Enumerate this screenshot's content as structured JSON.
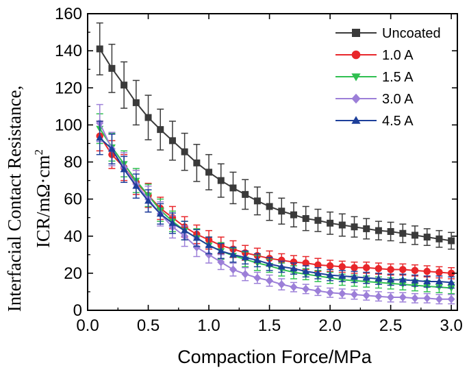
{
  "chart_data": {
    "type": "line",
    "xlabel": "Compaction Force/MPa",
    "ylabel_line1": "Interfacial Contact Resistance,",
    "ylabel_line2_text": "ICR/mΩ·cm",
    "ylabel_line2_sup": "2",
    "xlim": [
      0.0,
      3.05
    ],
    "ylim": [
      0,
      160
    ],
    "xticks": [
      "0.0",
      "0.5",
      "1.0",
      "1.5",
      "2.0",
      "2.5",
      "3.0"
    ],
    "xtick_values": [
      0.0,
      0.5,
      1.0,
      1.5,
      2.0,
      2.5,
      3.0
    ],
    "yticks": [
      "0",
      "20",
      "40",
      "60",
      "80",
      "100",
      "120",
      "140",
      "160"
    ],
    "ytick_values": [
      0,
      20,
      40,
      60,
      80,
      100,
      120,
      140,
      160
    ],
    "legend_position": "top-right",
    "x": [
      0.1,
      0.2,
      0.3,
      0.4,
      0.5,
      0.6,
      0.7,
      0.8,
      0.9,
      1.0,
      1.1,
      1.2,
      1.3,
      1.4,
      1.5,
      1.6,
      1.7,
      1.8,
      1.9,
      2.0,
      2.1,
      2.2,
      2.3,
      2.4,
      2.5,
      2.6,
      2.7,
      2.8,
      2.9,
      3.0
    ],
    "series": [
      {
        "name": "Uncoated",
        "color": "#3a3a3a",
        "marker": "square",
        "values": [
          141,
          130.5,
          121.5,
          112,
          104,
          97.5,
          91.5,
          85.5,
          79.5,
          74.5,
          70,
          66,
          62.5,
          59,
          56,
          53.5,
          51.5,
          49.5,
          48.5,
          47,
          46,
          45,
          44,
          43,
          42.5,
          41.5,
          40.5,
          39.5,
          38.5,
          37.5
        ],
        "errors": [
          14,
          13,
          12.5,
          12,
          12,
          11,
          10.5,
          10,
          10,
          9.5,
          9,
          8.5,
          8,
          7.5,
          7.5,
          7,
          6.5,
          6.5,
          6,
          6,
          6,
          5.5,
          5.5,
          5,
          5,
          5,
          5,
          4.5,
          4.5,
          4.5
        ]
      },
      {
        "name": "1.0 A",
        "color": "#e8262a",
        "marker": "circle",
        "values": [
          94,
          84,
          77,
          69,
          62,
          55,
          50,
          45,
          41,
          38,
          35,
          33,
          31,
          29.5,
          28,
          27,
          26,
          25.5,
          24.5,
          24,
          23.5,
          23,
          23,
          22.5,
          22,
          22,
          21.5,
          21,
          20.5,
          20
        ],
        "errors": [
          8,
          7.5,
          7,
          6.5,
          6.5,
          6,
          6,
          5.5,
          5,
          5,
          4.5,
          4.5,
          4,
          4,
          4,
          3.5,
          3.5,
          3.5,
          3.5,
          3,
          3,
          3,
          3,
          3,
          3,
          3,
          3,
          3,
          3,
          3
        ]
      },
      {
        "name": "1.5 A",
        "color": "#2fbf50",
        "marker": "triangle-down",
        "values": [
          98,
          88,
          79,
          70,
          62,
          54,
          48,
          43,
          39,
          35,
          32,
          29.5,
          27.5,
          25.5,
          24,
          22,
          20.5,
          19.5,
          18.5,
          17.5,
          16.5,
          16,
          15.5,
          15,
          14.5,
          14,
          13.5,
          13,
          12.5,
          12
        ],
        "errors": [
          8,
          7.5,
          7,
          6.5,
          6,
          6,
          5.5,
          5,
          5,
          4.5,
          4.5,
          4,
          4,
          4,
          3.5,
          3.5,
          3.5,
          3,
          3,
          3,
          3,
          3,
          3,
          3,
          3,
          3,
          3,
          3,
          3,
          3
        ]
      },
      {
        "name": "3.0 A",
        "color": "#9c7fd8",
        "marker": "diamond",
        "values": [
          101,
          87,
          77,
          68,
          60,
          52,
          45,
          40,
          34,
          30,
          26,
          22,
          19.5,
          17.5,
          16,
          14,
          12.5,
          11.5,
          10.5,
          9.5,
          9,
          8.5,
          8,
          7.5,
          7,
          7,
          6.5,
          6.5,
          6,
          6
        ],
        "errors": [
          10,
          9,
          8,
          7.5,
          7,
          6.5,
          6,
          5.5,
          5,
          4.5,
          4,
          3.5,
          3.5,
          3,
          3,
          3,
          2.5,
          2.5,
          2.5,
          2.5,
          2.5,
          2.5,
          2.5,
          2.5,
          2.5,
          2.5,
          2.5,
          2.5,
          2.5,
          2.5
        ]
      },
      {
        "name": "4.5 A",
        "color": "#1d3f9a",
        "marker": "triangle-up",
        "values": [
          93,
          87,
          76,
          67,
          59,
          52,
          47,
          43,
          39,
          35,
          32,
          30,
          28.5,
          27,
          25,
          23.5,
          22.5,
          21,
          20,
          19,
          18.5,
          18,
          17.5,
          17,
          16.5,
          16.5,
          16,
          15.5,
          15.5,
          15
        ],
        "errors": [
          9,
          8,
          7,
          6.5,
          6,
          5.5,
          5.5,
          5,
          4.5,
          4.5,
          4,
          4,
          3.5,
          3.5,
          3.5,
          3,
          3,
          3,
          3,
          3,
          3,
          3,
          3,
          3,
          3,
          3,
          3,
          3,
          3,
          3
        ]
      }
    ]
  }
}
